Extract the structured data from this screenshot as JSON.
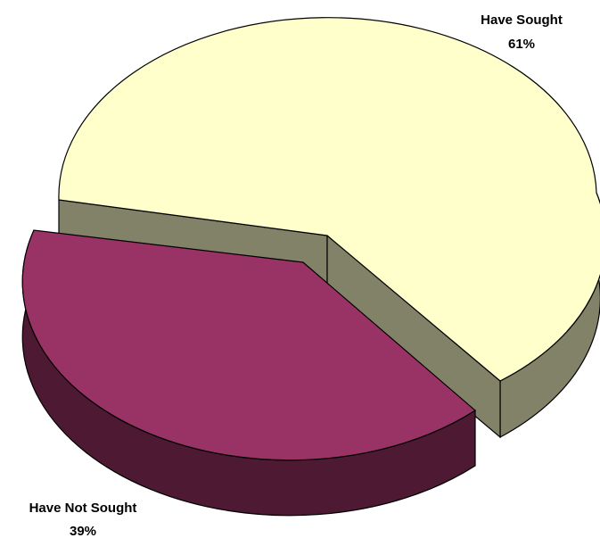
{
  "chart_data": {
    "type": "pie",
    "title": "",
    "slices": [
      {
        "label": "Have Sought",
        "value": 61,
        "pct_label": "61%",
        "color": "#ffffcc",
        "side_color": "#828268"
      },
      {
        "label": "Have Not Sought",
        "value": 39,
        "pct_label": "39%",
        "color": "#993366",
        "side_color": "#4d1933"
      }
    ],
    "exploded_slice": "Have Not Sought",
    "style": "3d-exploded"
  }
}
